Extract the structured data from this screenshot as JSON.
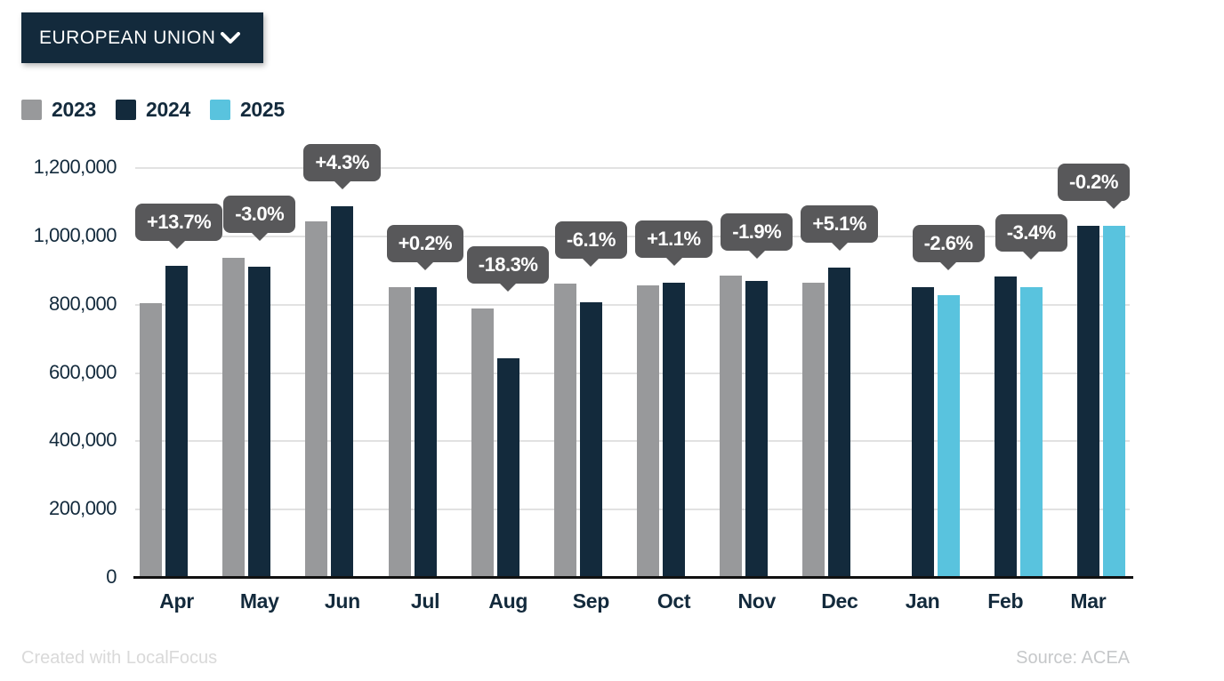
{
  "dropdown": {
    "label": "EUROPEAN UNION"
  },
  "legend": [
    {
      "label": "2023",
      "color": "#98999b"
    },
    {
      "label": "2024",
      "color": "#132a3c"
    },
    {
      "label": "2025",
      "color": "#59c3de"
    }
  ],
  "footer": {
    "left": "Created with LocalFocus",
    "right": "Source:  ACEA"
  },
  "colors": {
    "accent_navy": "#132a3c",
    "accent_gray": "#98999b",
    "accent_blue": "#59c3de",
    "tooltip_bg": "#58585a",
    "gridline": "#e2e2e2",
    "axis_text": "#132a3c",
    "baseline": "#111111"
  },
  "chart_data": {
    "type": "bar",
    "title": "",
    "xlabel": "",
    "ylabel": "",
    "categories": [
      "Apr",
      "May",
      "Jun",
      "Jul",
      "Aug",
      "Sep",
      "Oct",
      "Nov",
      "Dec",
      "Jan",
      "Feb",
      "Mar"
    ],
    "series": [
      {
        "name": "2023",
        "color": "#98999b",
        "values": [
          805000,
          938000,
          1043000,
          850000,
          788000,
          861000,
          856000,
          886000,
          865000,
          null,
          null,
          null
        ]
      },
      {
        "name": "2024",
        "color": "#132a3c",
        "values": [
          915000,
          910000,
          1088000,
          852000,
          644000,
          808000,
          865000,
          869000,
          909000,
          850000,
          882000,
          1032000
        ]
      },
      {
        "name": "2025",
        "color": "#59c3de",
        "values": [
          null,
          null,
          null,
          null,
          null,
          null,
          null,
          null,
          null,
          828000,
          852000,
          1030000
        ]
      }
    ],
    "annotations": [
      "+13.7%",
      "-3.0%",
      "+4.3%",
      "+0.2%",
      "-18.3%",
      "-6.1%",
      "+1.1%",
      "-1.9%",
      "+5.1%",
      "-2.6%",
      "-3.4%",
      "-0.2%"
    ],
    "ylim": [
      0,
      1200000
    ],
    "ytick_step": 200000,
    "ytick_labels": [
      "0",
      "200,000",
      "400,000",
      "600,000",
      "800,000",
      "1,000,000",
      "1,200,000"
    ],
    "grid": "horizontal",
    "legend_position": "top-left"
  }
}
